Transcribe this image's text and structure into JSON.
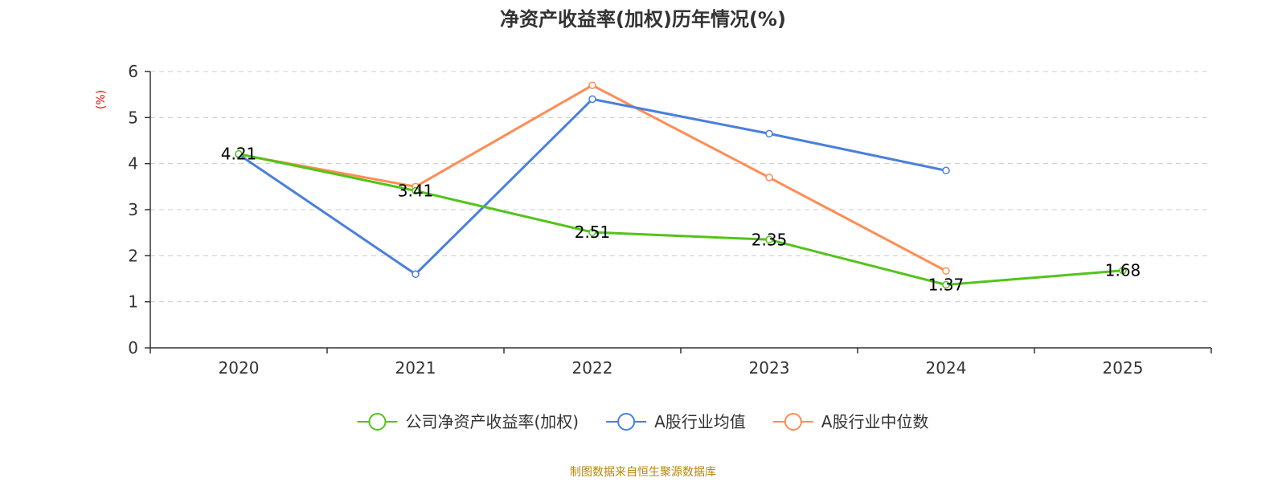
{
  "chart_data": {
    "type": "line",
    "title": "净资产收益率(加权)历年情况(%)",
    "ylabel": "(%)",
    "xlabel": "",
    "categories": [
      "2020",
      "2021",
      "2022",
      "2023",
      "2024",
      "2025"
    ],
    "ylim": [
      0,
      6
    ],
    "yticks": [
      "0",
      "1",
      "2",
      "3",
      "4",
      "5",
      "6"
    ],
    "grid": true,
    "legend_position": "bottom",
    "series": [
      {
        "name": "公司净资产收益率(加权)",
        "color": "#52c41a",
        "values": [
          4.21,
          3.41,
          2.51,
          2.35,
          1.37,
          1.68
        ],
        "labels": [
          "4.21",
          "3.41",
          "2.51",
          "2.35",
          "1.37",
          "1.68"
        ]
      },
      {
        "name": "A股行业均值",
        "color": "#4a7fdc",
        "values": [
          4.2,
          1.6,
          5.4,
          4.65,
          3.85,
          null
        ]
      },
      {
        "name": "A股行业中位数",
        "color": "#ff8c55",
        "values": [
          4.2,
          3.5,
          5.7,
          3.7,
          1.67,
          null
        ]
      }
    ],
    "source": "制图数据来自恒生聚源数据库"
  }
}
